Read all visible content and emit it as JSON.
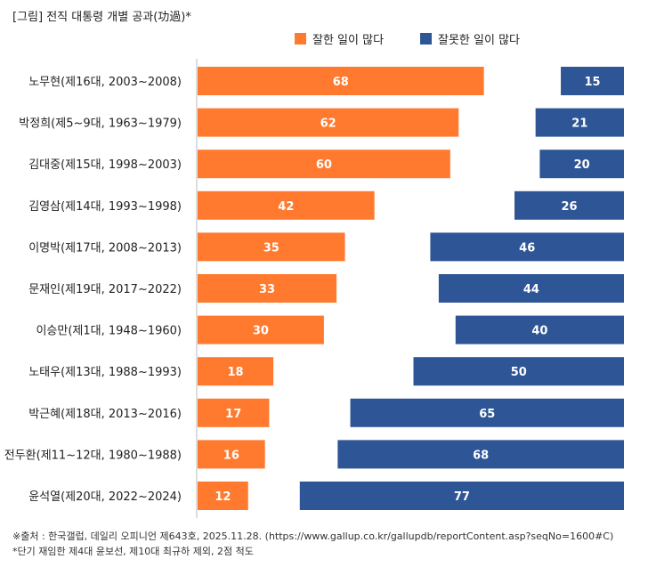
{
  "caption": "[그림] 전직 대통령 개별 공과(功過)*",
  "legend": [
    {
      "label": "잘한 일이 많다",
      "color": "#FF7A2E"
    },
    {
      "label": "잘못한 일이 많다",
      "color": "#2E5596"
    }
  ],
  "chart_data": {
    "type": "bar",
    "orientation": "horizontal",
    "title": "",
    "categories": [
      "노무현(제16대, 2003~2008)",
      "박정희(제5~9대, 1963~1979)",
      "김대중(제15대, 1998~2003)",
      "김영삼(제14대, 1993~1998)",
      "이명박(제17대, 2008~2013)",
      "문재인(제19대, 2017~2022)",
      "이승만(제1대, 1948~1960)",
      "노태우(제13대, 1988~1993)",
      "박근혜(제18대, 2013~2016)",
      "전두환(제11~12대, 1980~1988)",
      "윤석열(제20대, 2022~2024)"
    ],
    "series": [
      {
        "name": "잘한 일이 많다",
        "color": "#FF7A2E",
        "values": [
          68,
          62,
          60,
          42,
          35,
          33,
          30,
          18,
          17,
          16,
          12
        ]
      },
      {
        "name": "잘못한 일이 많다",
        "color": "#2E5596",
        "values": [
          15,
          21,
          20,
          26,
          46,
          44,
          40,
          50,
          65,
          68,
          77
        ]
      }
    ],
    "xlim": [
      0,
      100
    ],
    "grid": false,
    "legend_position": "top-right"
  },
  "notes": [
    "※출처 : 한국갤럽, 데일리 오피니언 제643호, 2025.11.28. (https://www.gallup.co.kr/gallupdb/reportContent.asp?seqNo=1600#C)",
    "*단기 재임한 제4대 윤보선, 제10대 최규하 제외, 2점 척도"
  ]
}
